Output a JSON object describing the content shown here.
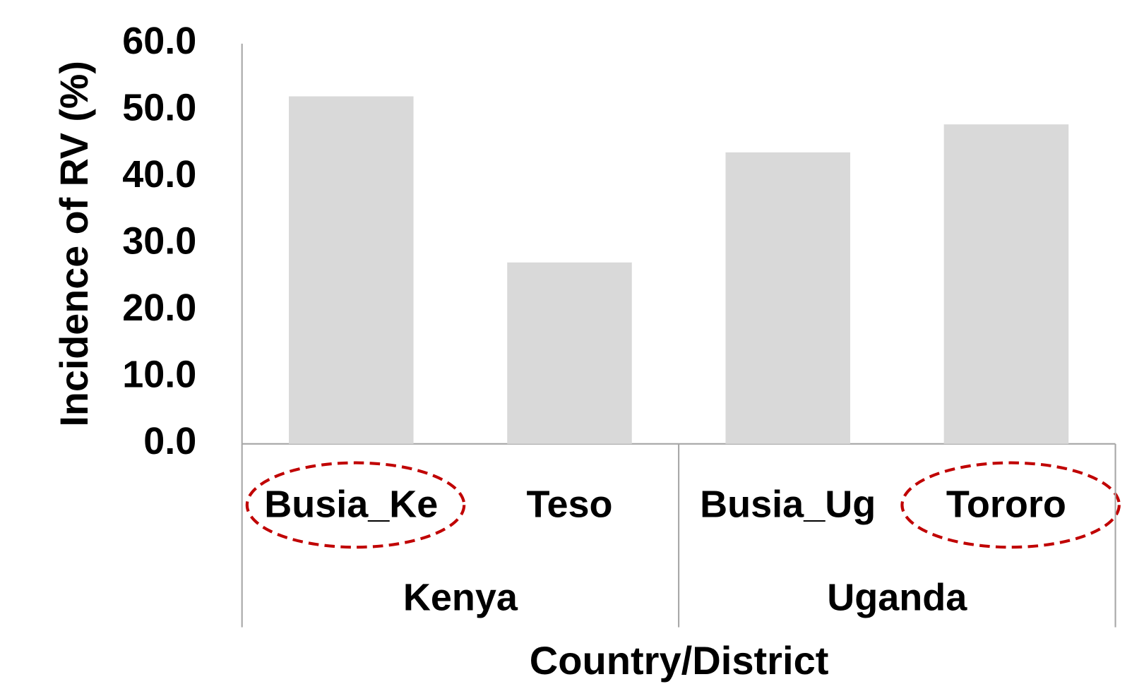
{
  "chart_data": {
    "type": "bar",
    "y_label": "Incidence of RV (%)",
    "x_label": "Country/District",
    "groups": [
      {
        "name": "Kenya",
        "categories": [
          "Busia_Ke",
          "Teso"
        ],
        "values": [
          52.1,
          27.2
        ],
        "highlight": [
          true,
          false
        ]
      },
      {
        "name": "Uganda",
        "categories": [
          "Busia_Ug",
          "Tororo"
        ],
        "values": [
          43.7,
          47.9
        ],
        "highlight": [
          false,
          true
        ]
      }
    ],
    "color": "#d9d9d9",
    "highlight_color": "#c00000",
    "ylim": [
      0,
      60
    ],
    "yticks": [
      {
        "value": 0,
        "label": "0.0"
      },
      {
        "value": 10,
        "label": "10.0"
      },
      {
        "value": 20,
        "label": "20.0"
      },
      {
        "value": 30,
        "label": "30.0"
      },
      {
        "value": 40,
        "label": "40.0"
      },
      {
        "value": 50,
        "label": "50.0"
      },
      {
        "value": 60,
        "label": "60.0"
      }
    ],
    "grid": false
  }
}
